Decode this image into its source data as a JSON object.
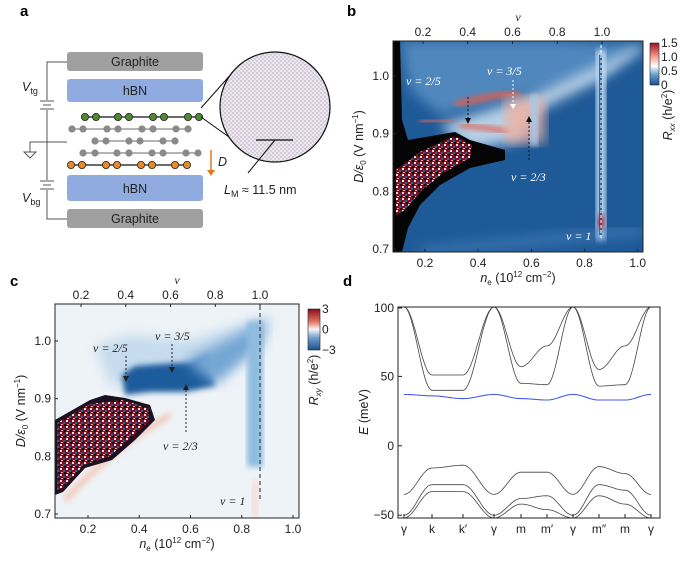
{
  "panel_a": {
    "label": "a",
    "top_gate": "Graphite",
    "top_hbn": "hBN",
    "bottom_hbn": "hBN",
    "bottom_gate": "Graphite",
    "vtg": {
      "main": "V",
      "sub": "tg"
    },
    "vbg": {
      "main": "V",
      "sub": "bg"
    },
    "field": "D",
    "moire": {
      "main": "L",
      "sub": "M",
      "rest": " ≈ 11.5 nm"
    },
    "colors": {
      "graphite": "#a0a0a0",
      "hbn": "#8fabe0",
      "top_layer_atoms": "#4e8a2e",
      "bottom_layer_atoms": "#e88a2a",
      "middle_atoms": "#8a8a8a",
      "arrow": "#e07a20"
    }
  },
  "chart_data": [
    {
      "panel": "b",
      "type": "heatmap",
      "label": "b",
      "xlabel": {
        "main": "n",
        "sub": "e",
        "unit": " (10",
        "sup": "12",
        "unit2": " cm",
        "sup2": "−2",
        "close": ")"
      },
      "ylabel": {
        "main": "D/ε",
        "sub": "0",
        "unit": " (V nm",
        "sup": "−1",
        "close": ")"
      },
      "top_axis_label": "ν",
      "xticks": [
        "0.2",
        "0.4",
        "0.6",
        "0.8",
        "1.0"
      ],
      "xtick_values": [
        0.2,
        0.4,
        0.6,
        0.8,
        1.0
      ],
      "yticks": [
        "0.7",
        "0.8",
        "0.9",
        "1.0"
      ],
      "ytick_values": [
        0.7,
        0.8,
        0.9,
        1.0
      ],
      "top_ticks": [
        "0.2",
        "0.4",
        "0.6",
        "0.8",
        "1.0"
      ],
      "top_tick_values": [
        0.2,
        0.4,
        0.6,
        0.8,
        1.0
      ],
      "xlim": [
        0.08,
        1.02
      ],
      "ylim": [
        0.695,
        1.06
      ],
      "colorbar": {
        "label_main": "R",
        "label_sub": "xx",
        "label_unit": " (h/e",
        "label_sup": "2",
        "label_close": ")",
        "ticks": [
          "1.5",
          "1.0",
          "0.5",
          "0"
        ],
        "range": [
          0,
          1.5
        ],
        "colors": [
          "#1b4f8c",
          "#ffffff",
          "#a01020"
        ]
      },
      "annotations": [
        "ν = 2/5",
        "ν = 3/5",
        "ν = 2/3",
        "ν = 1"
      ]
    },
    {
      "panel": "c",
      "type": "heatmap",
      "label": "c",
      "xlabel": {
        "main": "n",
        "sub": "e",
        "unit": " (10",
        "sup": "12",
        "unit2": " cm",
        "sup2": "−2",
        "close": ")"
      },
      "ylabel": {
        "main": "D/ε",
        "sub": "0",
        "unit": " (V nm",
        "sup": "−1",
        "close": ")"
      },
      "top_axis_label": "ν",
      "xticks": [
        "0.2",
        "0.4",
        "0.6",
        "0.8",
        "1.0"
      ],
      "xtick_values": [
        0.2,
        0.4,
        0.6,
        0.8,
        1.0
      ],
      "yticks": [
        "0.7",
        "0.8",
        "0.9",
        "1.0"
      ],
      "ytick_values": [
        0.7,
        0.8,
        0.9,
        1.0
      ],
      "top_ticks": [
        "0.2",
        "0.4",
        "0.6",
        "0.8",
        "1.0"
      ],
      "top_tick_values": [
        0.2,
        0.4,
        0.6,
        0.8,
        1.0
      ],
      "xlim": [
        0.07,
        1.02
      ],
      "ylim": [
        0.695,
        1.065
      ],
      "colorbar": {
        "label_main": "R",
        "label_sub": "xy",
        "label_unit": " (h/e",
        "label_sup": "2",
        "label_close": ")",
        "ticks": [
          "3",
          "0",
          "−3"
        ],
        "range": [
          -3,
          3
        ],
        "colors": [
          "#1b4f8c",
          "#ffffff",
          "#a01020"
        ]
      },
      "annotations": [
        "ν = 2/5",
        "ν = 3/5",
        "ν = 2/3",
        "ν = 1"
      ]
    },
    {
      "panel": "d",
      "type": "line",
      "label": "d",
      "ylabel": {
        "main": "E",
        "unit": " (meV)"
      },
      "yticks": [
        "100",
        "50",
        "0",
        "−50"
      ],
      "ytick_values": [
        100,
        50,
        0,
        -50
      ],
      "ylim": [
        -52,
        100
      ],
      "categories": [
        "γ",
        "k",
        "k′",
        "γ",
        "m",
        "m′",
        "γ",
        "m″",
        "m",
        "γ"
      ],
      "series": [
        {
          "values": [
            37,
            36,
            34,
            37,
            34,
            33,
            37,
            33,
            33,
            37
          ],
          "color": "#4a5cf0"
        },
        {
          "values": [
            100,
            40,
            40,
            100,
            45,
            44,
            100,
            43,
            44,
            100
          ],
          "color": "#444444"
        },
        {
          "values": [
            100,
            51,
            51,
            100,
            57,
            72,
            100,
            55,
            72,
            100
          ],
          "color": "#444444"
        },
        {
          "values": [
            -35,
            -16,
            -14,
            -35,
            -19,
            -19,
            -35,
            -15,
            -20,
            -35
          ],
          "color": "#444444"
        },
        {
          "values": [
            -50,
            -28,
            -28,
            -50,
            -38,
            -36,
            -50,
            -28,
            -32,
            -50
          ],
          "color": "#444444"
        },
        {
          "values": [
            -52,
            -33,
            -33,
            -52,
            -42,
            -46,
            -52,
            -36,
            -42,
            -52
          ],
          "color": "#444444"
        }
      ]
    }
  ]
}
